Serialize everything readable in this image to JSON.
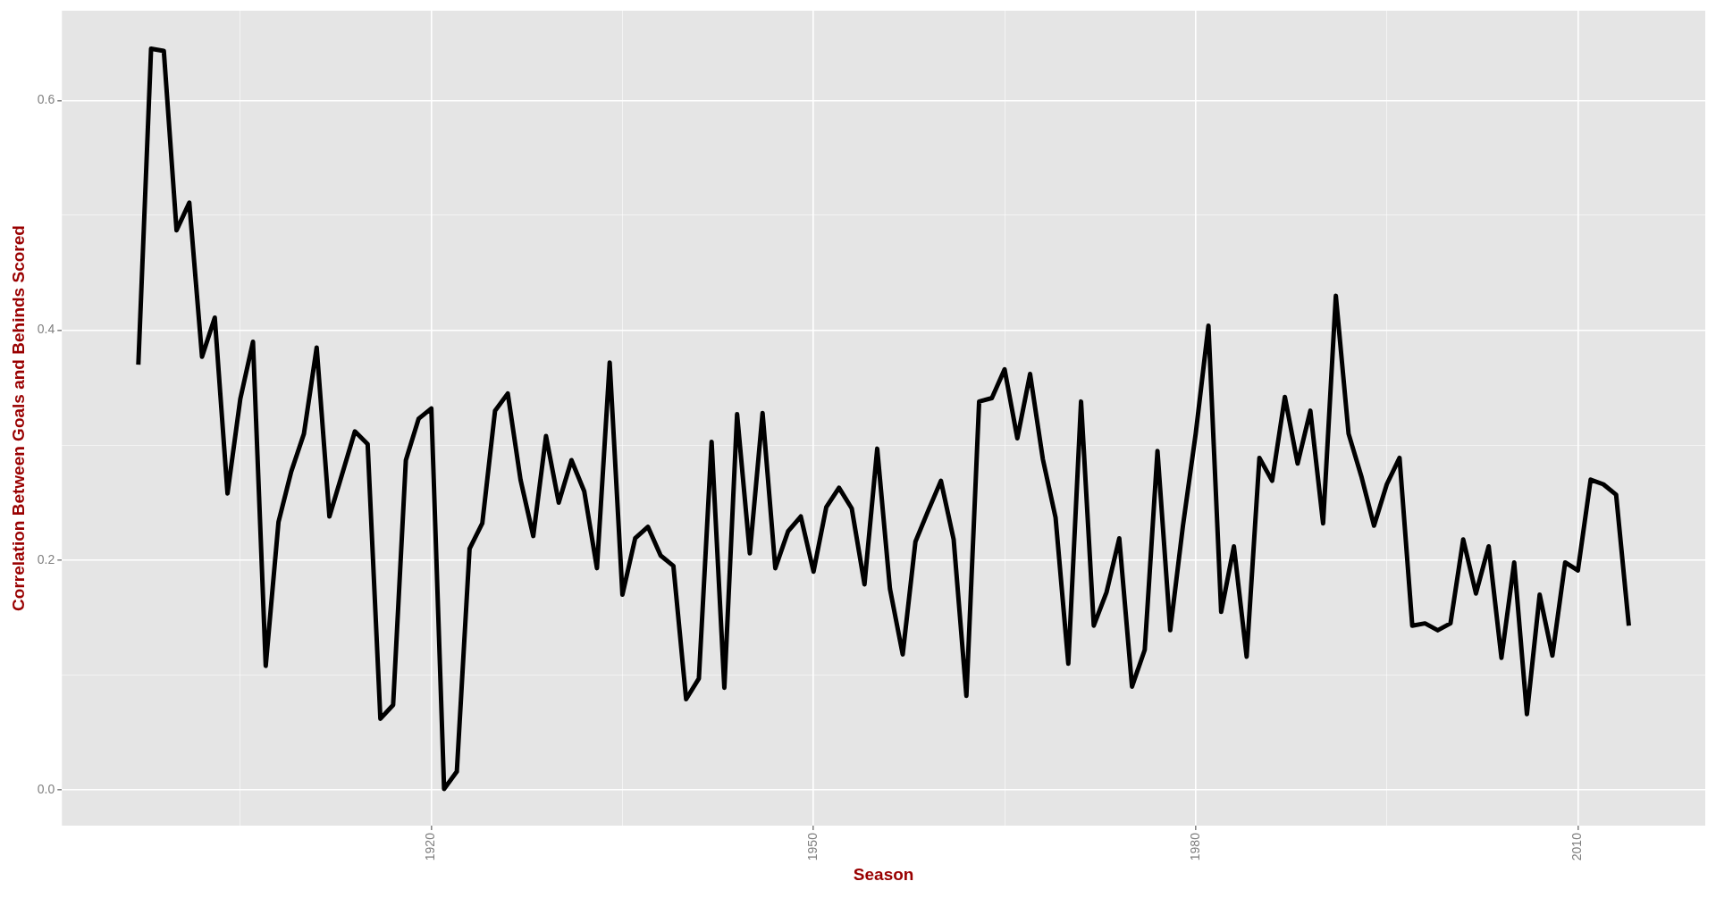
{
  "chart_data": {
    "type": "line",
    "xlabel": "Season",
    "ylabel": "Correlation Between Goals and Behinds Scored",
    "x": [
      1897,
      1898,
      1899,
      1900,
      1901,
      1902,
      1903,
      1904,
      1905,
      1906,
      1907,
      1908,
      1909,
      1910,
      1911,
      1912,
      1913,
      1914,
      1915,
      1916,
      1917,
      1918,
      1919,
      1920,
      1921,
      1922,
      1923,
      1924,
      1925,
      1926,
      1927,
      1928,
      1929,
      1930,
      1931,
      1932,
      1933,
      1934,
      1935,
      1936,
      1937,
      1938,
      1939,
      1940,
      1941,
      1942,
      1943,
      1944,
      1945,
      1946,
      1947,
      1948,
      1949,
      1950,
      1951,
      1952,
      1953,
      1954,
      1955,
      1956,
      1957,
      1958,
      1959,
      1960,
      1961,
      1962,
      1963,
      1964,
      1965,
      1966,
      1967,
      1968,
      1969,
      1970,
      1971,
      1972,
      1973,
      1974,
      1975,
      1976,
      1977,
      1978,
      1979,
      1980,
      1981,
      1982,
      1983,
      1984,
      1985,
      1986,
      1987,
      1988,
      1989,
      1990,
      1991,
      1992,
      1993,
      1994,
      1995,
      1996,
      1997,
      1998,
      1999,
      2000,
      2001,
      2002,
      2003,
      2004,
      2005,
      2006,
      2007,
      2008,
      2009,
      2010,
      2011,
      2012,
      2013,
      2014
    ],
    "series": [
      {
        "color": "#000000",
        "values": [
          0.37,
          0.645,
          0.643,
          0.487,
          0.511,
          0.377,
          0.411,
          0.258,
          0.34,
          0.39,
          0.108,
          0.233,
          0.277,
          0.31,
          0.385,
          0.238,
          0.275,
          0.312,
          0.301,
          0.062,
          0.074,
          0.287,
          0.323,
          0.332,
          0.001,
          0.016,
          0.21,
          0.232,
          0.33,
          0.345,
          0.27,
          0.221,
          0.308,
          0.25,
          0.287,
          0.26,
          0.193,
          0.372,
          0.17,
          0.219,
          0.229,
          0.204,
          0.195,
          0.079,
          0.097,
          0.303,
          0.089,
          0.327,
          0.206,
          0.328,
          0.193,
          0.225,
          0.238,
          0.19,
          0.246,
          0.263,
          0.245,
          0.179,
          0.297,
          0.175,
          0.118,
          0.216,
          0.243,
          0.269,
          0.218,
          0.082,
          0.338,
          0.341,
          0.366,
          0.306,
          0.362,
          0.288,
          0.237,
          0.11,
          0.338,
          0.143,
          0.172,
          0.219,
          0.09,
          0.122,
          0.295,
          0.139,
          0.23,
          0.31,
          0.404,
          0.155,
          0.212,
          0.116,
          0.289,
          0.269,
          0.342,
          0.284,
          0.33,
          0.232,
          0.43,
          0.31,
          0.273,
          0.23,
          0.266,
          0.289,
          0.143,
          0.145,
          0.139,
          0.145,
          0.218,
          0.171,
          0.212,
          0.115,
          0.198,
          0.066,
          0.17,
          0.117,
          0.198,
          0.191,
          0.27,
          0.266,
          0.257,
          0.143
        ]
      }
    ],
    "xlim": [
      1891,
      2020
    ],
    "ylim": [
      -0.031,
      0.678
    ],
    "xticks": [
      {
        "value": 1905,
        "label": null
      },
      1920,
      {
        "value": 1935,
        "label": null
      },
      1950,
      {
        "value": 1965,
        "label": null
      },
      1980,
      {
        "value": 1995,
        "label": null
      },
      2010
    ],
    "yticks": [
      {
        "value": 0,
        "label": "0.0"
      },
      {
        "value": 0.1,
        "label": null
      },
      {
        "value": 0.2,
        "label": "0.2"
      },
      {
        "value": 0.3,
        "label": null
      },
      {
        "value": 0.4,
        "label": "0.4"
      },
      {
        "value": 0.5,
        "label": null
      },
      {
        "value": 0.6,
        "label": "0.6"
      }
    ],
    "grid": true,
    "marker": "none",
    "line_style": "solid"
  }
}
